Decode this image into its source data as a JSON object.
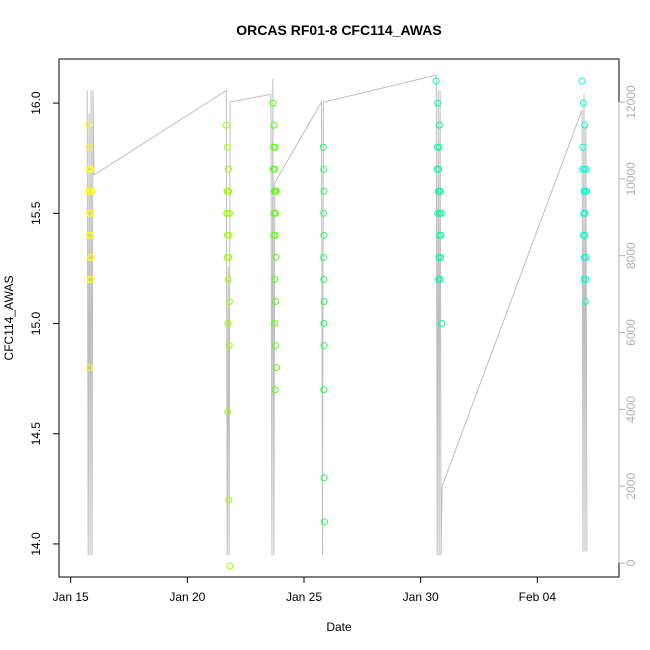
{
  "chart_data": {
    "type": "scatter",
    "title": "ORCAS RF01-8 CFC114_AWAS",
    "xlabel": "Date",
    "ylabel": "CFC114_AWAS",
    "xlim": [
      "2016-01-14T12:00",
      "2016-02-07T12:00"
    ],
    "ylim": [
      13.85,
      16.2
    ],
    "y2lim": [
      0,
      12000
    ],
    "x_ticks": [
      {
        "label": "Jan 15",
        "date": "2016-01-15"
      },
      {
        "label": "Jan 20",
        "date": "2016-01-20"
      },
      {
        "label": "Jan 25",
        "date": "2016-01-25"
      },
      {
        "label": "Jan 30",
        "date": "2016-01-30"
      },
      {
        "label": "Feb 04",
        "date": "2016-02-04"
      }
    ],
    "y_ticks": [
      "14.0",
      "14.5",
      "15.0",
      "15.5",
      "16.0"
    ],
    "y2_ticks": [
      "0",
      "2000",
      "4000",
      "6000",
      "8000",
      "10000",
      "12000"
    ],
    "grid": false,
    "colors": {
      "axis": "#000000",
      "altitude_line": "#bebebe",
      "right_axis": "#b0b0b0"
    },
    "flights": [
      {
        "date": "2016-01-15T18:00",
        "end": "2016-01-15T22:00",
        "color": "#ffff00",
        "values": [
          15.9,
          15.8,
          15.7,
          15.7,
          15.6,
          15.6,
          15.6,
          15.5,
          15.5,
          15.4,
          15.4,
          15.3,
          15.3,
          15.2,
          15.2,
          14.8,
          15.7,
          15.6,
          15.5,
          15.6
        ]
      },
      {
        "date": "2016-01-21T16:00",
        "end": "2016-01-21T20:00",
        "color": "#99ff00",
        "values": [
          15.9,
          15.8,
          15.7,
          15.6,
          15.6,
          15.5,
          15.5,
          15.4,
          15.4,
          15.3,
          15.3,
          15.2,
          15.1,
          15.0,
          14.9,
          14.6,
          14.2,
          13.9,
          15.6,
          15.5
        ]
      },
      {
        "date": "2016-01-23T16:00",
        "end": "2016-01-23T20:00",
        "color": "#55ff00",
        "values": [
          16.0,
          15.9,
          15.8,
          15.8,
          15.7,
          15.7,
          15.6,
          15.6,
          15.5,
          15.5,
          15.4,
          15.4,
          15.3,
          15.2,
          15.1,
          15.0,
          14.9,
          14.8,
          14.7,
          15.6
        ]
      },
      {
        "date": "2016-01-25T20:00",
        "end": "2016-01-25T21:00",
        "color": "#22ff55",
        "values": [
          15.8,
          15.7,
          15.6,
          15.5,
          15.4,
          15.3,
          15.2,
          15.1,
          15.0,
          14.9,
          14.7,
          14.3,
          14.1
        ]
      },
      {
        "date": "2016-01-30T16:00",
        "end": "2016-01-30T22:00",
        "color": "#00ff99",
        "values": [
          16.1,
          16.0,
          15.9,
          15.8,
          15.8,
          15.7,
          15.7,
          15.6,
          15.6,
          15.5,
          15.5,
          15.4,
          15.4,
          15.3,
          15.3,
          15.2,
          15.2,
          15.0,
          15.6,
          15.5
        ]
      },
      {
        "date": "2016-02-05T22:00",
        "end": "2016-02-06T03:00",
        "color": "#00ffcc",
        "values": [
          16.1,
          16.0,
          15.9,
          15.8,
          15.7,
          15.7,
          15.6,
          15.6,
          15.5,
          15.5,
          15.4,
          15.4,
          15.3,
          15.3,
          15.2,
          15.2,
          15.1,
          15.6,
          15.5,
          15.7
        ]
      }
    ],
    "altitude_series": {
      "name": "",
      "points": [
        [
          "2016-01-15T17:00",
          12300
        ],
        [
          "2016-01-15T18:00",
          200
        ],
        [
          "2016-01-15T19:00",
          11700
        ],
        [
          "2016-01-15T20:00",
          200
        ],
        [
          "2016-01-15T21:00",
          12300
        ],
        [
          "2016-01-15T22:00",
          200
        ],
        [
          "2016-01-15T23:00",
          12300
        ],
        [
          "2016-01-16T00:00",
          10100
        ],
        [
          "2016-01-21T16:00",
          12300
        ],
        [
          "2016-01-21T17:00",
          200
        ],
        [
          "2016-01-21T18:00",
          7700
        ],
        [
          "2016-01-21T19:00",
          200
        ],
        [
          "2016-01-21T20:00",
          12000
        ],
        [
          "2016-01-23T14:00",
          12200
        ],
        [
          "2016-01-23T15:00",
          200
        ],
        [
          "2016-01-23T16:00",
          12600
        ],
        [
          "2016-01-23T17:00",
          200
        ],
        [
          "2016-01-23T18:00",
          9900
        ],
        [
          "2016-01-25T18:00",
          12000
        ],
        [
          "2016-01-25T19:00",
          200
        ],
        [
          "2016-01-25T20:00",
          12000
        ],
        [
          "2016-01-25T21:00",
          12000
        ],
        [
          "2016-01-30T16:00",
          12700
        ],
        [
          "2016-01-30T17:00",
          200
        ],
        [
          "2016-01-30T18:00",
          12300
        ],
        [
          "2016-01-30T19:00",
          200
        ],
        [
          "2016-01-30T20:00",
          12300
        ],
        [
          "2016-01-30T21:00",
          200
        ],
        [
          "2016-01-30T22:00",
          2000
        ],
        [
          "2016-02-05T22:00",
          11800
        ],
        [
          "2016-02-05T23:00",
          300
        ],
        [
          "2016-02-06T00:00",
          12200
        ],
        [
          "2016-02-06T01:00",
          300
        ],
        [
          "2016-02-06T02:00",
          11400
        ],
        [
          "2016-02-06T03:00",
          300
        ]
      ]
    }
  }
}
